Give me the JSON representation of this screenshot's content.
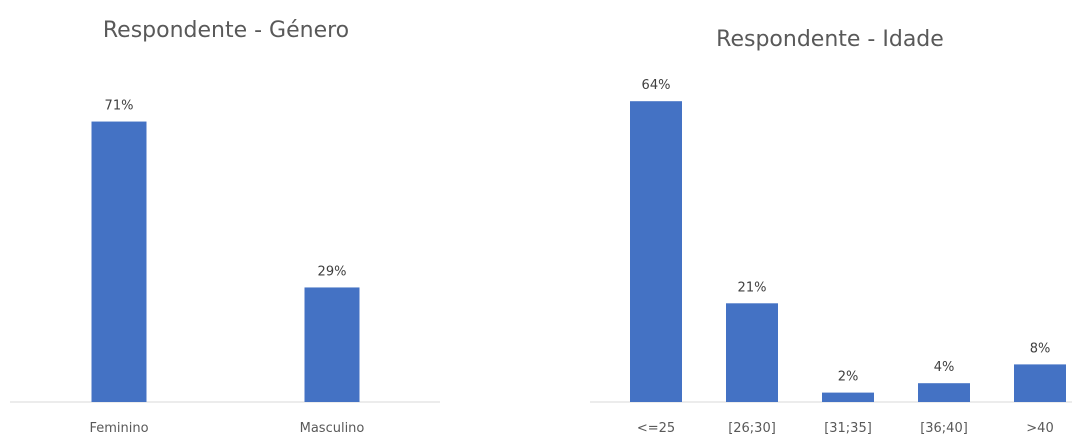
{
  "chart_data": [
    {
      "type": "bar",
      "title": "Respondente - Género",
      "categories": [
        "Feminino",
        "Masculino"
      ],
      "values": [
        71,
        29
      ],
      "data_labels": [
        "71%",
        "29%"
      ],
      "ylim": [
        0,
        80
      ],
      "grid": false,
      "legend": "none",
      "bar_color": "#4472C4"
    },
    {
      "type": "bar",
      "title": "Respondente - Idade",
      "categories": [
        "<=25",
        "[26;30]",
        "[31;35]",
        "[36;40]",
        ">40"
      ],
      "values": [
        64,
        21,
        2,
        4,
        8
      ],
      "data_labels": [
        "64%",
        "21%",
        "2%",
        "4%",
        "8%"
      ],
      "ylim": [
        0,
        70
      ],
      "grid": false,
      "legend": "none",
      "bar_color": "#4472C4"
    }
  ]
}
